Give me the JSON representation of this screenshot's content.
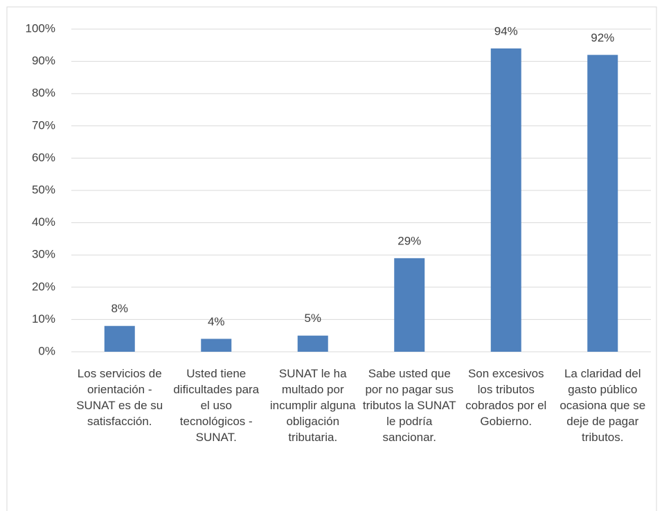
{
  "chart_data": {
    "type": "bar",
    "categories": [
      "Los servicios de orientación - SUNAT es de su satisfacción.",
      "Usted tiene dificultades para el uso tecnológicos - SUNAT.",
      "SUNAT le ha multado por incumplir alguna obligación tributaria.",
      "Sabe usted que por no pagar sus tributos la SUNAT le podría sancionar.",
      "Son excesivos los tributos cobrados por el Gobierno.",
      "La claridad del gasto público ocasiona que se deje de pagar tributos."
    ],
    "values": [
      8,
      4,
      5,
      29,
      94,
      92
    ],
    "value_labels": [
      "8%",
      "4%",
      "5%",
      "29%",
      "94%",
      "92%"
    ],
    "color": "#4f81bd",
    "ylim": [
      0,
      100
    ],
    "yticks": [
      {
        "value": 0,
        "label": "0%"
      },
      {
        "value": 10,
        "label": "10%"
      },
      {
        "value": 20,
        "label": "20%"
      },
      {
        "value": 30,
        "label": "30%"
      },
      {
        "value": 40,
        "label": "40%"
      },
      {
        "value": 50,
        "label": "50%"
      },
      {
        "value": 60,
        "label": "60%"
      },
      {
        "value": 70,
        "label": "70%"
      },
      {
        "value": 80,
        "label": "80%"
      },
      {
        "value": 90,
        "label": "90%"
      },
      {
        "value": 100,
        "label": "100%"
      }
    ],
    "grid": true
  }
}
